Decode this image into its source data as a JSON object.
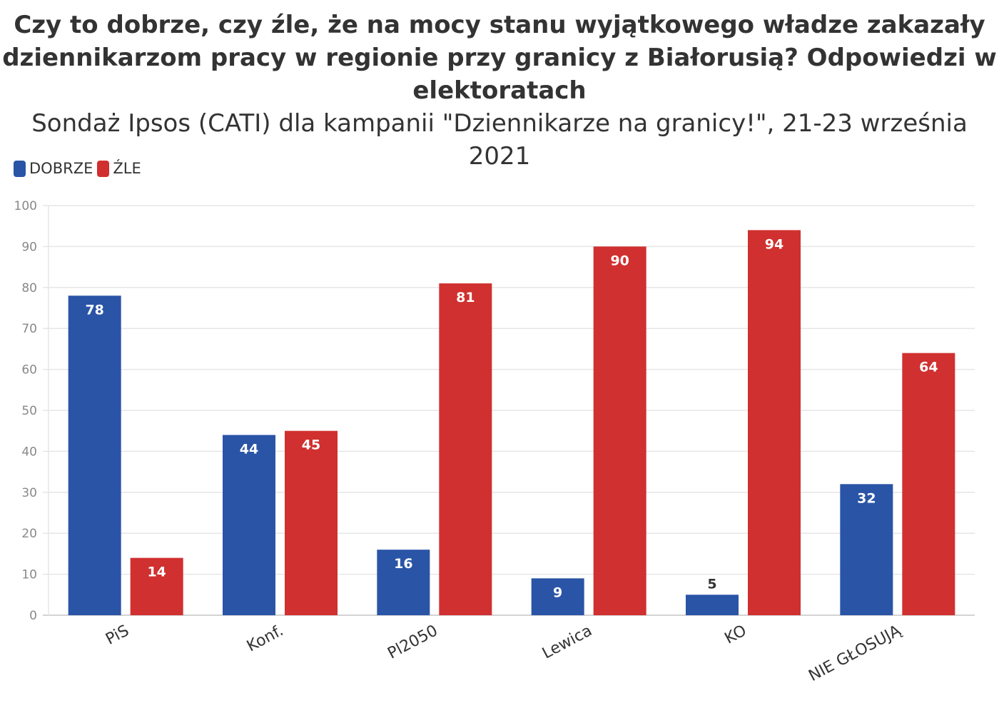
{
  "chart_data": {
    "type": "bar",
    "title_lines": [
      "Czy to dobrze, czy źle, że na mocy stanu wyjątkowego władze zakazały",
      "dziennikarzom pracy w regionie przy granicy z Białorusią? Odpowiedzi w",
      "elektoratach"
    ],
    "subtitle": "Sondaż Ipsos (CATI) dla kampanii \"Dziennikarze na granicy!\", 21-23 września 2021",
    "categories": [
      "PiS",
      "Konf.",
      "Pl2050",
      "Lewica",
      "KO",
      "NIE GŁOSUJĄ"
    ],
    "series": [
      {
        "name": "DOBRZE",
        "color": "#2a54a6",
        "values": [
          78,
          44,
          16,
          9,
          5,
          32
        ]
      },
      {
        "name": "ŹLE",
        "color": "#d0302f",
        "values": [
          14,
          45,
          81,
          90,
          94,
          64
        ]
      }
    ],
    "yticks": [
      "0",
      "10",
      "20",
      "30",
      "40",
      "50",
      "60",
      "70",
      "80",
      "90",
      "100"
    ],
    "ylim": [
      0,
      100
    ],
    "grid": true,
    "legend_position": "top-left"
  }
}
